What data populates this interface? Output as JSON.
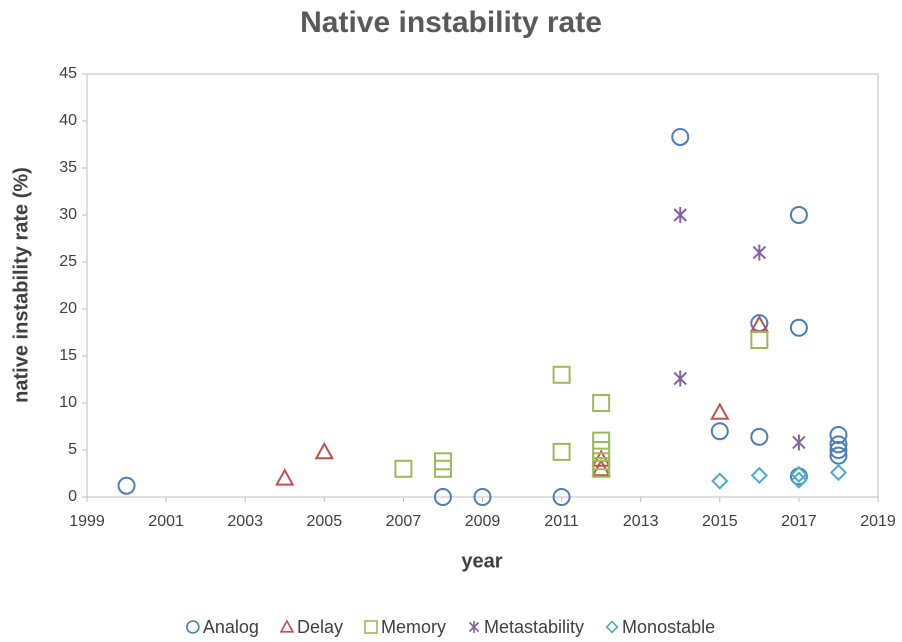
{
  "chart_data": {
    "type": "scatter",
    "title": "Native instability rate",
    "xlabel": "year",
    "ylabel": "native instability rate (%)",
    "xlim": [
      1999,
      2019
    ],
    "xticks": [
      1999,
      2001,
      2003,
      2005,
      2007,
      2009,
      2011,
      2013,
      2015,
      2017,
      2019
    ],
    "ylim": [
      0,
      45
    ],
    "yticks": [
      0,
      5,
      10,
      15,
      20,
      25,
      30,
      35,
      40,
      45
    ],
    "grid": false,
    "legend": "bottom",
    "series": [
      {
        "name": "Analog",
        "color": "#4a7ebb",
        "marker": "circle",
        "x": [
          2000,
          2008,
          2009,
          2011,
          2014,
          2015,
          2016,
          2016,
          2017,
          2017,
          2017,
          2018,
          2018,
          2018,
          2018
        ],
        "values": [
          1.2,
          0,
          0,
          0,
          38.3,
          7,
          18.5,
          6.4,
          30,
          18,
          2.2,
          6.6,
          5.6,
          5,
          4.4
        ]
      },
      {
        "name": "Delay",
        "color": "#c0504d",
        "marker": "triangle",
        "x": [
          2004,
          2005,
          2012,
          2012,
          2015,
          2016
        ],
        "values": [
          2,
          4.8,
          4,
          3,
          9,
          18.3
        ]
      },
      {
        "name": "Memory",
        "color": "#9bbb59",
        "marker": "square",
        "x": [
          2007,
          2008,
          2008,
          2011,
          2011,
          2012,
          2012,
          2012,
          2012,
          2012,
          2016
        ],
        "values": [
          3,
          3.8,
          3,
          13,
          4.8,
          10,
          6,
          5,
          3.8,
          3,
          16.7
        ]
      },
      {
        "name": "Metastability",
        "color": "#8064a2",
        "marker": "asterisk",
        "x": [
          2014,
          2014,
          2016,
          2017
        ],
        "values": [
          30,
          12.6,
          26,
          5.8
        ]
      },
      {
        "name": "Monostable",
        "color": "#4bacc6",
        "marker": "diamond",
        "x": [
          2015,
          2016,
          2017,
          2017,
          2018
        ],
        "values": [
          1.7,
          2.3,
          2.4,
          1.8,
          2.6
        ]
      }
    ]
  }
}
